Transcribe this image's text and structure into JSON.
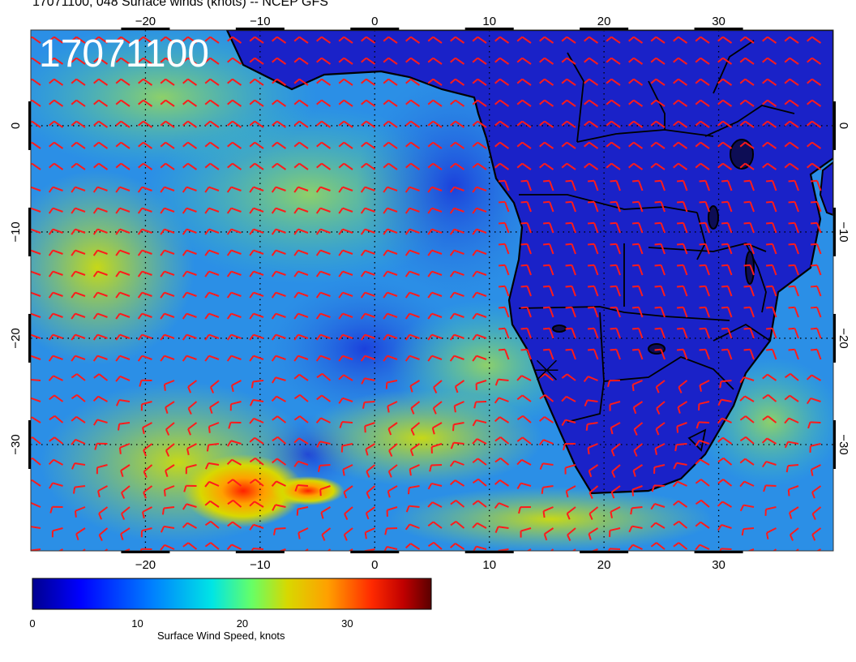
{
  "title": "17071100, 048 Surface winds (knots) -- NCEP GFS",
  "stamp": "17071100",
  "map": {
    "lon_range": [
      -30,
      40
    ],
    "lat_range": [
      -40,
      9
    ],
    "lon_ticks": [
      "−20",
      "−10",
      "0",
      "10",
      "20",
      "30"
    ],
    "lon_tick_values": [
      -20,
      -10,
      0,
      10,
      20,
      30
    ],
    "lat_ticks": [
      "0",
      "−10",
      "−20",
      "−30"
    ],
    "lat_tick_values": [
      0,
      -10,
      -20,
      -30
    ],
    "barb_color": "#ff1a1a",
    "coast_color": "#000000",
    "grid": "dotted",
    "storm_marker": {
      "lon": 15,
      "lat": -23
    }
  },
  "colorbar": {
    "label": "Surface Wind Speed, knots",
    "ticks": [
      "0",
      "10",
      "20",
      "30"
    ],
    "tick_values": [
      0,
      10,
      20,
      30
    ],
    "range": [
      0,
      38
    ],
    "colors": [
      "#00008f",
      "#0000ff",
      "#007fff",
      "#00e5e5",
      "#66ff66",
      "#d8d800",
      "#ffa000",
      "#ff2a00",
      "#c00000",
      "#5a0000"
    ]
  }
}
